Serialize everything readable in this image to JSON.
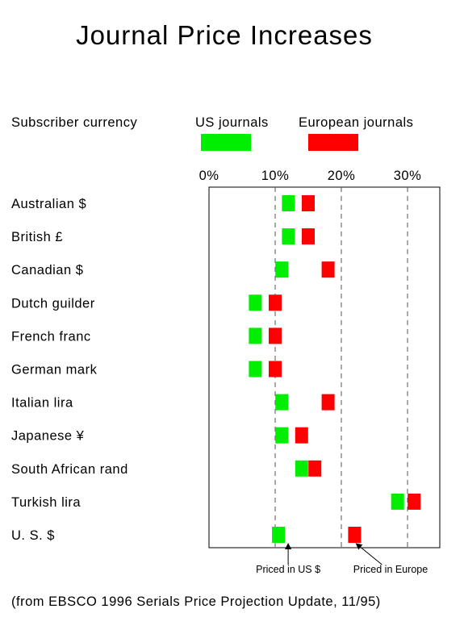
{
  "chart_data": {
    "type": "bar",
    "title": "Journal Price Increases",
    "row_header": "Subscriber currency",
    "categories": [
      "Australian $",
      "British £",
      "Canadian $",
      "Dutch guilder",
      "French franc",
      "German mark",
      "Italian lira",
      "Japanese ¥",
      "South African rand",
      "Turkish lira",
      "U. S. $"
    ],
    "series": [
      {
        "name": "US journals",
        "color": "#00ee00",
        "values": [
          12.0,
          12.0,
          11.0,
          7.0,
          7.0,
          7.0,
          11.0,
          11.0,
          14.0,
          28.5,
          10.5
        ]
      },
      {
        "name": "European journals",
        "color": "#ff0000",
        "values": [
          15.0,
          15.0,
          18.0,
          10.0,
          10.0,
          10.0,
          18.0,
          14.0,
          16.0,
          31.0,
          22.0
        ]
      }
    ],
    "xaxis": {
      "ticks": [
        0,
        10,
        20,
        30
      ],
      "tick_labels": [
        "0%",
        "10%",
        "20%",
        "30%"
      ],
      "range": [
        0,
        32
      ],
      "grid": "dashed at 10, 20, 30"
    },
    "annotations": [
      {
        "text": "Priced in US $",
        "row": "U. S. $",
        "series": "US journals"
      },
      {
        "text": "Priced in Europe",
        "row": "U. S. $",
        "series": "European journals"
      }
    ],
    "source_note": "(from EBSCO 1996 Serials Price Projection Update, 11/95)"
  }
}
